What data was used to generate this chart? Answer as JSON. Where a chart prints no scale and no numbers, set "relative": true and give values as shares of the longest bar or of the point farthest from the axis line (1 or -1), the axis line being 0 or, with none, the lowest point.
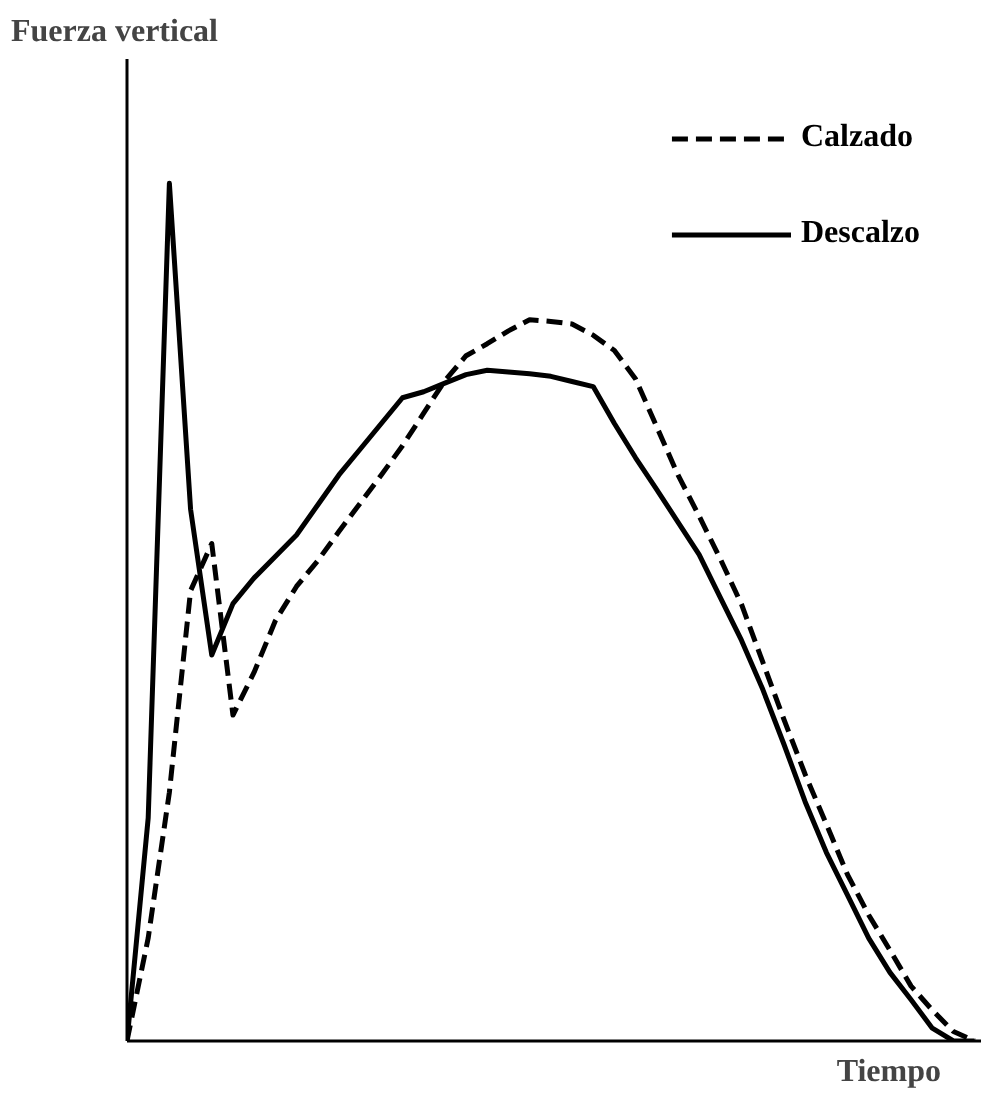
{
  "chart_data": {
    "type": "line",
    "relative": true,
    "xlabel": "Tiempo",
    "ylabel": "Fuerza vertical",
    "legend": "top right",
    "marker": "none",
    "categories": [
      null,
      null,
      null,
      null,
      null,
      null,
      null,
      null,
      null,
      null,
      null,
      null,
      null,
      null,
      null,
      null,
      null,
      null,
      null,
      null,
      null,
      null,
      null,
      null,
      null,
      null,
      null,
      null,
      null,
      null,
      null,
      null,
      null,
      null,
      null,
      null,
      null,
      null,
      null,
      null,
      null
    ],
    "series": [
      {
        "name": "Calzado",
        "color": "#000000",
        "line_style": "dashed",
        "values": [
          0,
          0.12,
          0.29,
          0.525,
          0.58,
          0.38,
          0.43,
          0.49,
          0.53,
          0.56,
          0.594,
          0.627,
          0.66,
          0.694,
          0.732,
          0.77,
          0.799,
          0.813,
          0.828,
          0.841,
          0.839,
          0.836,
          0.823,
          0.805,
          0.772,
          0.716,
          0.66,
          0.612,
          0.562,
          0.509,
          0.442,
          0.375,
          0.311,
          0.253,
          0.194,
          0.147,
          0.106,
          0.064,
          0.036,
          0.011,
          0
        ]
      },
      {
        "name": "Descalzo",
        "color": "#000000",
        "line_style": "solid",
        "values": [
          0,
          0.26,
          1.0,
          0.62,
          0.45,
          0.51,
          0.54,
          0.565,
          0.59,
          0.625,
          0.66,
          0.69,
          0.72,
          0.75,
          0.757,
          0.767,
          0.777,
          0.782,
          0.78,
          0.778,
          0.775,
          0.769,
          0.763,
          0.72,
          0.68,
          0.643,
          0.605,
          0.567,
          0.517,
          0.467,
          0.41,
          0.346,
          0.279,
          0.22,
          0.17,
          0.12,
          0.08,
          0.048,
          0.015,
          0,
          0
        ]
      }
    ]
  }
}
